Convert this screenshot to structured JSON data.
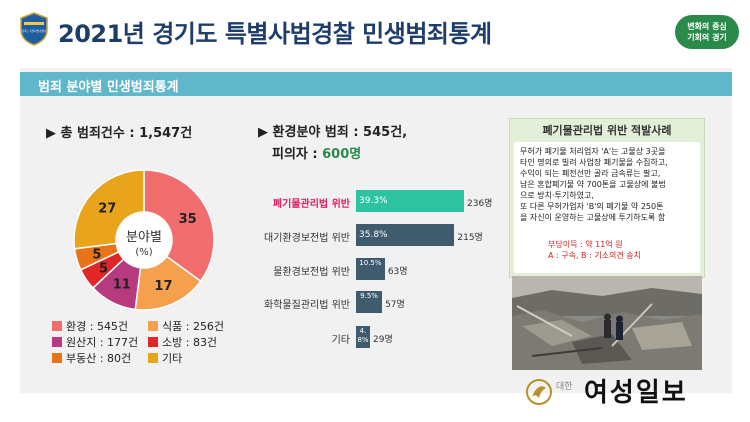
{
  "header": {
    "title": "2021년 경기도 특별사법경찰 민생범죄통계",
    "badge_text": "경기도 특별사법경찰단",
    "slogan_line1": "변화의 중심",
    "slogan_line2": "기회의 경기",
    "accent": "#1f3d6b"
  },
  "section": {
    "title": "범죄 분야별 민생범죄통계",
    "color": "#5fb7c9"
  },
  "summary": {
    "total_label": "▶ 총 범죄건수 : 1,547건"
  },
  "chart_data": [
    {
      "type": "pie",
      "center_label": "분야별",
      "center_unit": "(%)",
      "slices": [
        {
          "name": "환경",
          "value": 35,
          "count_label": "환경 : 545건",
          "color": "#f26d6d"
        },
        {
          "name": "식품",
          "value": 17,
          "count_label": "식품 : 256건",
          "color": "#f5a04c"
        },
        {
          "name": "원산지",
          "value": 11,
          "count_label": "원산지 : 177건",
          "color": "#b83a7e"
        },
        {
          "name": "소방",
          "value": 5,
          "count_label": "소방 : 83건",
          "color": "#e02626"
        },
        {
          "name": "부동산",
          "value": 5,
          "count_label": "부동산 : 80건",
          "color": "#e8741a"
        },
        {
          "name": "기타",
          "value": 27,
          "count_label": "기타",
          "color": "#e8a51c"
        }
      ]
    },
    {
      "type": "bar",
      "orientation": "horizontal",
      "title_line1": "▶ 환경분야 범죄 : 545건,",
      "title_line2_prefix": "피의자 : ",
      "title_line2_value": "600명",
      "categories": [
        "폐기물관리법 위반",
        "대기환경보전법 위반",
        "물환경보전법 위반",
        "화학물질관리법 위반",
        "기타"
      ],
      "values": [
        236,
        215,
        63,
        57,
        29
      ],
      "percent_labels": [
        "39.3%",
        "35.8%",
        "10.5%",
        "9.5%",
        "4.8%"
      ],
      "count_labels": [
        "236명",
        "215명",
        "63명",
        "57명",
        "29명"
      ],
      "highlight_index": 0,
      "highlight_color": "#2ec3a0",
      "bar_color": "#3f5b6e"
    }
  ],
  "case": {
    "title": "폐기물관리법 위반 적발사례",
    "lines": [
      "무허가 폐기물 처리업자 'A'는 고물상 3곳을",
      "타인 명의로 빌려 사업장 폐기물을 수집하고,",
      "수익이 되는 폐전선만 골라 금속류는 팔고,",
      "남은 혼합폐기물 약 700톤을 고물상에 불법",
      "으로 방치·투기하였고,",
      "또 다른 무허가업자 'B'의 폐기물 약 250톤",
      "을 자신이 운영하는 고물상에 투기하도록 함"
    ],
    "result_line1": "부당이득 : 약 11억 원",
    "result_line2": "A : 구속, B : 기소의견 송치"
  },
  "brand": {
    "small": "대한",
    "name": "여성일보"
  }
}
